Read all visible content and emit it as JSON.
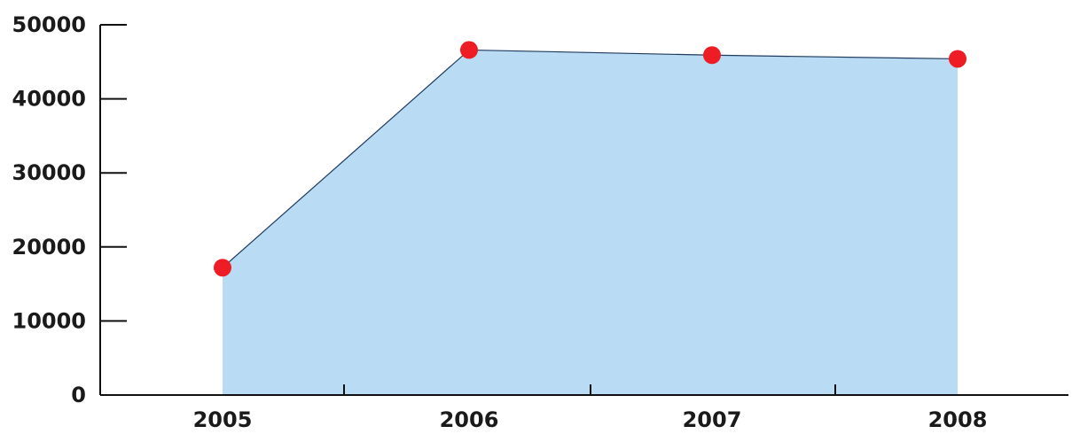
{
  "chart_data": {
    "type": "area",
    "title": "",
    "xlabel": "",
    "ylabel": "",
    "categories": [
      "2005",
      "2006",
      "2007",
      "2008"
    ],
    "series": [
      {
        "values": [
          17200,
          46600,
          45900,
          45400
        ]
      }
    ],
    "ylim": [
      0,
      50000
    ],
    "yticks": [
      "0",
      "10000",
      "20000",
      "30000",
      "40000",
      "50000"
    ],
    "grid": false,
    "legend": "none",
    "colors": {
      "area_fill": "#b9dbf3",
      "line": "#1f3a5f",
      "marker": "#ee1c25",
      "axis": "#111111"
    }
  }
}
